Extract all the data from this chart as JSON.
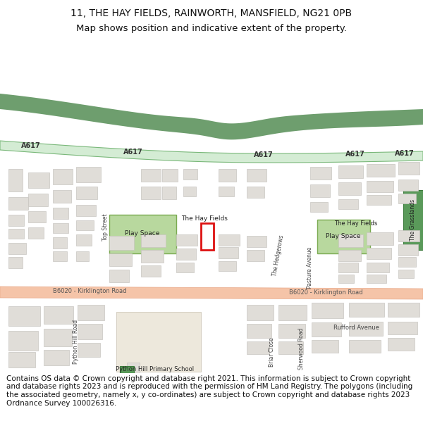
{
  "title_line1": "11, THE HAY FIELDS, RAINWORTH, MANSFIELD, NG21 0PB",
  "title_line2": "Map shows position and indicative extent of the property.",
  "footer_text": "Contains OS data © Crown copyright and database right 2021. This information is subject to Crown copyright and database rights 2023 and is reproduced with the permission of HM Land Registry. The polygons (including the associated geometry, namely x, y co-ordinates) are subject to Crown copyright and database rights 2023 Ordnance Survey 100026316.",
  "title_fontsize": 10,
  "footer_fontsize": 7.5,
  "map_bg": "#ffffff",
  "road_a617_dark": "#6e9e6e",
  "road_a617_light": "#d4ecd4",
  "road_a617_light_edge": "#7ab87a",
  "road_b6020_color": "#f5c4a8",
  "road_b6020_edge": "#e8a888",
  "building_color": "#e0ddd8",
  "building_edge": "#c8c5c0",
  "green_play": "#b8d89e",
  "green_dark": "#5a9a5a",
  "highlight_edge": "#cc1111",
  "white_bg": "#ffffff",
  "label_color": "#333333",
  "road_label_color": "#444444"
}
